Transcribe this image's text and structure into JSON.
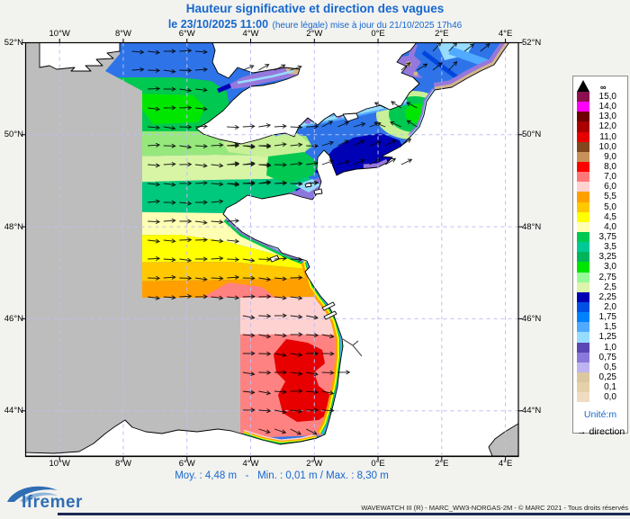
{
  "header": {
    "title": "Hauteur significative et direction des vagues",
    "date_bold": "le 23/10/2025 11:00",
    "date_rest": "(heure légale) mise à jour du 21/10/2025 17h46"
  },
  "map_axes": {
    "lon_labels": [
      "10°W",
      "8°W",
      "6°W",
      "4°W",
      "2°W",
      "0°E",
      "2°E",
      "4°E"
    ],
    "lat_labels": [
      "52°N",
      "50°N",
      "48°N",
      "46°N",
      "44°N"
    ]
  },
  "legend": {
    "infinity_label": "∞",
    "unit_label": "Unité:m",
    "direction_label": "direction",
    "direction_arrow": "→",
    "entries": [
      {
        "value": "15,0",
        "color": "#8C1050"
      },
      {
        "value": "14,0",
        "color": "#FF00FF"
      },
      {
        "value": "13,0",
        "color": "#6E0000"
      },
      {
        "value": "12,0",
        "color": "#AA0000"
      },
      {
        "value": "11,0",
        "color": "#E60000"
      },
      {
        "value": "10,0",
        "color": "#82461E"
      },
      {
        "value": "9,0",
        "color": "#C8915A"
      },
      {
        "value": "8,0",
        "color": "#FF0000"
      },
      {
        "value": "7,0",
        "color": "#FF7878"
      },
      {
        "value": "6,0",
        "color": "#FFD2D2"
      },
      {
        "value": "5,5",
        "color": "#FFA000"
      },
      {
        "value": "5,0",
        "color": "#FFC800"
      },
      {
        "value": "4,5",
        "color": "#FFFF00"
      },
      {
        "value": "4,0",
        "color": "#FFFFB4"
      },
      {
        "value": "3,75",
        "color": "#00C850"
      },
      {
        "value": "3,5",
        "color": "#00C896"
      },
      {
        "value": "3,25",
        "color": "#00B45A"
      },
      {
        "value": "3,0",
        "color": "#00E600"
      },
      {
        "value": "2,75",
        "color": "#96FA96"
      },
      {
        "value": "2,5",
        "color": "#DCF5AA"
      },
      {
        "value": "2,25",
        "color": "#0000B4"
      },
      {
        "value": "2,0",
        "color": "#0050E6"
      },
      {
        "value": "1,75",
        "color": "#0082FF"
      },
      {
        "value": "1,5",
        "color": "#50AAFF"
      },
      {
        "value": "1,25",
        "color": "#96DCFF"
      },
      {
        "value": "1,0",
        "color": "#5A46B4"
      },
      {
        "value": "0,75",
        "color": "#8C78DC"
      },
      {
        "value": "0,5",
        "color": "#BEB4F0"
      },
      {
        "value": "0,25",
        "color": "#DCC8A0",
        "speckle": true
      },
      {
        "value": "0,1",
        "color": "#E6D2AA",
        "speckle": true
      },
      {
        "value": "0,0",
        "color": "#F0DCC0"
      }
    ]
  },
  "stats": {
    "mean_label": "Moy. : 4,48 m",
    "separator": "-",
    "min_max_label": "Min. : 0,01 m / Max. : 8,30 m"
  },
  "branding": {
    "logo_text": "Ifremer"
  },
  "footer_credit": "WAVEWATCH III (R) - MARC_WW3-NORGAS-2M - © MARC 2021 - Tous droits réservés"
}
